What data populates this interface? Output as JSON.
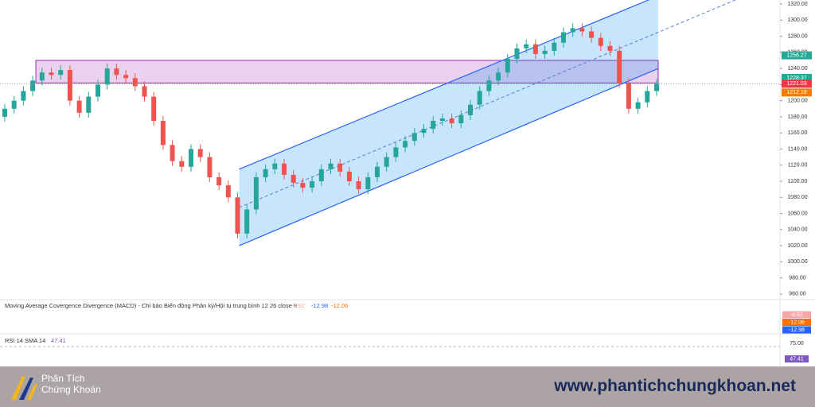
{
  "chart_data": {
    "type": "candlestick",
    "open": [
      1180,
      1190,
      1200,
      1212,
      1225,
      1235,
      1232,
      1238,
      1200,
      1185,
      1205,
      1220,
      1240,
      1232,
      1228,
      1218,
      1205,
      1175,
      1145,
      1125,
      1118,
      1140,
      1130,
      1105,
      1095,
      1080,
      1035,
      1065,
      1105,
      1115,
      1122,
      1108,
      1098,
      1092,
      1100,
      1115,
      1122,
      1112,
      1100,
      1090,
      1105,
      1118,
      1130,
      1142,
      1150,
      1160,
      1165,
      1175,
      1178,
      1172,
      1182,
      1195,
      1212,
      1225,
      1235,
      1252,
      1265,
      1270,
      1258,
      1262,
      1272,
      1285,
      1290,
      1286,
      1278,
      1268,
      1262,
      1222,
      1190,
      1198,
      1212
    ],
    "high": [
      1196,
      1206,
      1218,
      1231,
      1241,
      1241,
      1244,
      1244,
      1206,
      1211,
      1226,
      1246,
      1246,
      1238,
      1234,
      1224,
      1211,
      1181,
      1151,
      1131,
      1146,
      1146,
      1136,
      1111,
      1101,
      1086,
      1071,
      1111,
      1121,
      1128,
      1128,
      1114,
      1104,
      1106,
      1121,
      1128,
      1128,
      1118,
      1106,
      1111,
      1124,
      1136,
      1148,
      1156,
      1166,
      1171,
      1181,
      1184,
      1184,
      1188,
      1201,
      1218,
      1231,
      1241,
      1258,
      1271,
      1276,
      1276,
      1268,
      1278,
      1291,
      1296,
      1296,
      1292,
      1284,
      1274,
      1268,
      1228,
      1204,
      1218,
      1227
    ],
    "low": [
      1174,
      1184,
      1194,
      1206,
      1219,
      1226,
      1226,
      1194,
      1179,
      1179,
      1199,
      1214,
      1226,
      1222,
      1212,
      1199,
      1169,
      1139,
      1119,
      1112,
      1112,
      1124,
      1099,
      1089,
      1074,
      1029,
      1029,
      1059,
      1099,
      1109,
      1102,
      1092,
      1086,
      1086,
      1094,
      1109,
      1106,
      1094,
      1084,
      1084,
      1099,
      1112,
      1124,
      1136,
      1144,
      1154,
      1159,
      1169,
      1166,
      1166,
      1176,
      1189,
      1206,
      1219,
      1229,
      1246,
      1259,
      1252,
      1252,
      1256,
      1266,
      1279,
      1280,
      1272,
      1262,
      1256,
      1216,
      1184,
      1184,
      1192,
      1206
    ],
    "close": [
      1190,
      1200,
      1212,
      1225,
      1235,
      1232,
      1238,
      1200,
      1185,
      1205,
      1220,
      1240,
      1232,
      1228,
      1218,
      1205,
      1175,
      1145,
      1125,
      1118,
      1140,
      1130,
      1105,
      1095,
      1080,
      1035,
      1065,
      1105,
      1115,
      1122,
      1108,
      1098,
      1092,
      1100,
      1115,
      1122,
      1112,
      1100,
      1090,
      1105,
      1118,
      1130,
      1142,
      1150,
      1160,
      1165,
      1175,
      1178,
      1172,
      1182,
      1195,
      1212,
      1225,
      1235,
      1252,
      1265,
      1270,
      1258,
      1262,
      1272,
      1285,
      1290,
      1286,
      1278,
      1268,
      1262,
      1222,
      1190,
      1198,
      1212,
      1221.03
    ],
    "up_color": "#26a69a",
    "down_color": "#ef5350",
    "ylim": [
      953,
      1325
    ],
    "yticks": [
      {
        "value": 960,
        "label": "960.00"
      },
      {
        "value": 980,
        "label": "980.00"
      },
      {
        "value": 1000,
        "label": "1000.00"
      },
      {
        "value": 1020,
        "label": "1020.00"
      },
      {
        "value": 1040,
        "label": "1040.00"
      },
      {
        "value": 1060,
        "label": "1060.00"
      },
      {
        "value": 1080,
        "label": "1080.00"
      },
      {
        "value": 1100,
        "label": "1100.00"
      },
      {
        "value": 1120,
        "label": "1120.00"
      },
      {
        "value": 1140,
        "label": "1140.00"
      },
      {
        "value": 1160,
        "label": "1160.00"
      },
      {
        "value": 1180,
        "label": "1180.00"
      },
      {
        "value": 1200,
        "label": "1200.00"
      },
      {
        "value": 1220,
        "label": "1220.00"
      },
      {
        "value": 1240,
        "label": "1240.00"
      },
      {
        "value": 1260,
        "label": "1260.00"
      },
      {
        "value": 1280,
        "label": "1280.00"
      },
      {
        "value": 1300,
        "label": "1300.00"
      },
      {
        "value": 1320,
        "label": "1320.00"
      }
    ],
    "zone": [
      1222,
      1250
    ],
    "channel": {
      "lower": [
        1020,
        1240
      ],
      "upper": [
        1115,
        1330
      ]
    },
    "price_labels": {
      "values": [
        1256.27,
        1228.37,
        1221.03,
        1212.19
      ],
      "colors": [
        "#22ab94",
        "#22ab94",
        "#f23645",
        "#f57c00"
      ]
    },
    "macd": {
      "title": "Moving Average Covergence Divergence (MACD) - Chỉ báo Biến động Phân kỳ/Hội tụ trung bình 12 26 close 9",
      "values": [
        -0.92,
        -12.98,
        -12.06
      ],
      "value_colors": [
        "#f7a6a6",
        "#2962ff",
        "#ff6d00"
      ],
      "axis_labels": [
        -0.92,
        -12.06,
        -12.98
      ],
      "axis_colors": [
        "#f7a6a6",
        "#ff6d00",
        "#2962ff"
      ]
    },
    "rsi": {
      "title": "RSI 14 SMA 14",
      "value": 47.41,
      "tick": {
        "value": 75,
        "label": "75.00"
      },
      "color": "#7e57c2"
    }
  },
  "footer": {
    "brand_line1": "Phân Tích",
    "brand_line2": "Chứng Khoán",
    "url": "www.phantichchungkhoan.net"
  }
}
